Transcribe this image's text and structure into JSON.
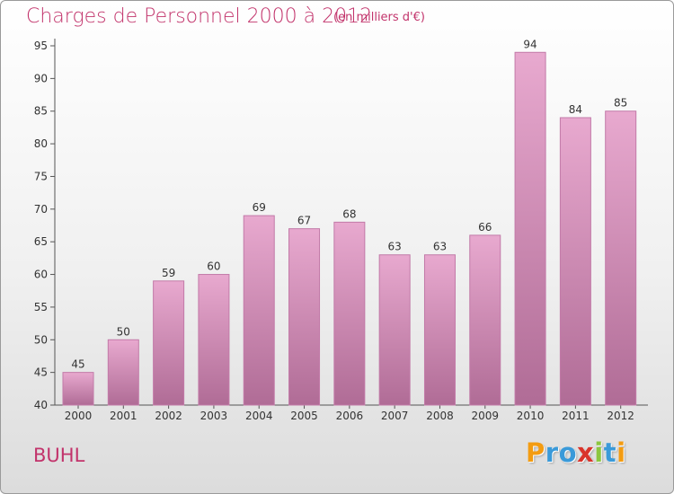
{
  "chart_data": {
    "type": "bar",
    "title": "Charges de Personnel 2000 à 2012",
    "subtitle": "(en milliers d'€)",
    "categories": [
      "2000",
      "2001",
      "2002",
      "2003",
      "2004",
      "2005",
      "2006",
      "2007",
      "2008",
      "2009",
      "2010",
      "2011",
      "2012"
    ],
    "values": [
      45,
      50,
      59,
      60,
      69,
      67,
      68,
      63,
      63,
      66,
      94,
      84,
      85
    ],
    "ylim": [
      40,
      95
    ],
    "yticks": [
      40,
      45,
      50,
      55,
      60,
      65,
      70,
      75,
      80,
      85,
      90,
      95
    ],
    "grid": false,
    "colors": {
      "bar_light": "#e8a9cf",
      "bar_dark": "#b06c96",
      "title": "#c2336b"
    }
  },
  "commune": "BUHL",
  "logo": {
    "letters": [
      {
        "ch": "P",
        "color": "#f39c12"
      },
      {
        "ch": "r",
        "color": "#3a9ad9"
      },
      {
        "ch": "o",
        "color": "#3a9ad9"
      },
      {
        "ch": "x",
        "color": "#d9342b"
      },
      {
        "ch": "i",
        "color": "#8cc63f"
      },
      {
        "ch": "t",
        "color": "#3a9ad9"
      },
      {
        "ch": "i",
        "color": "#f39c12"
      }
    ]
  }
}
